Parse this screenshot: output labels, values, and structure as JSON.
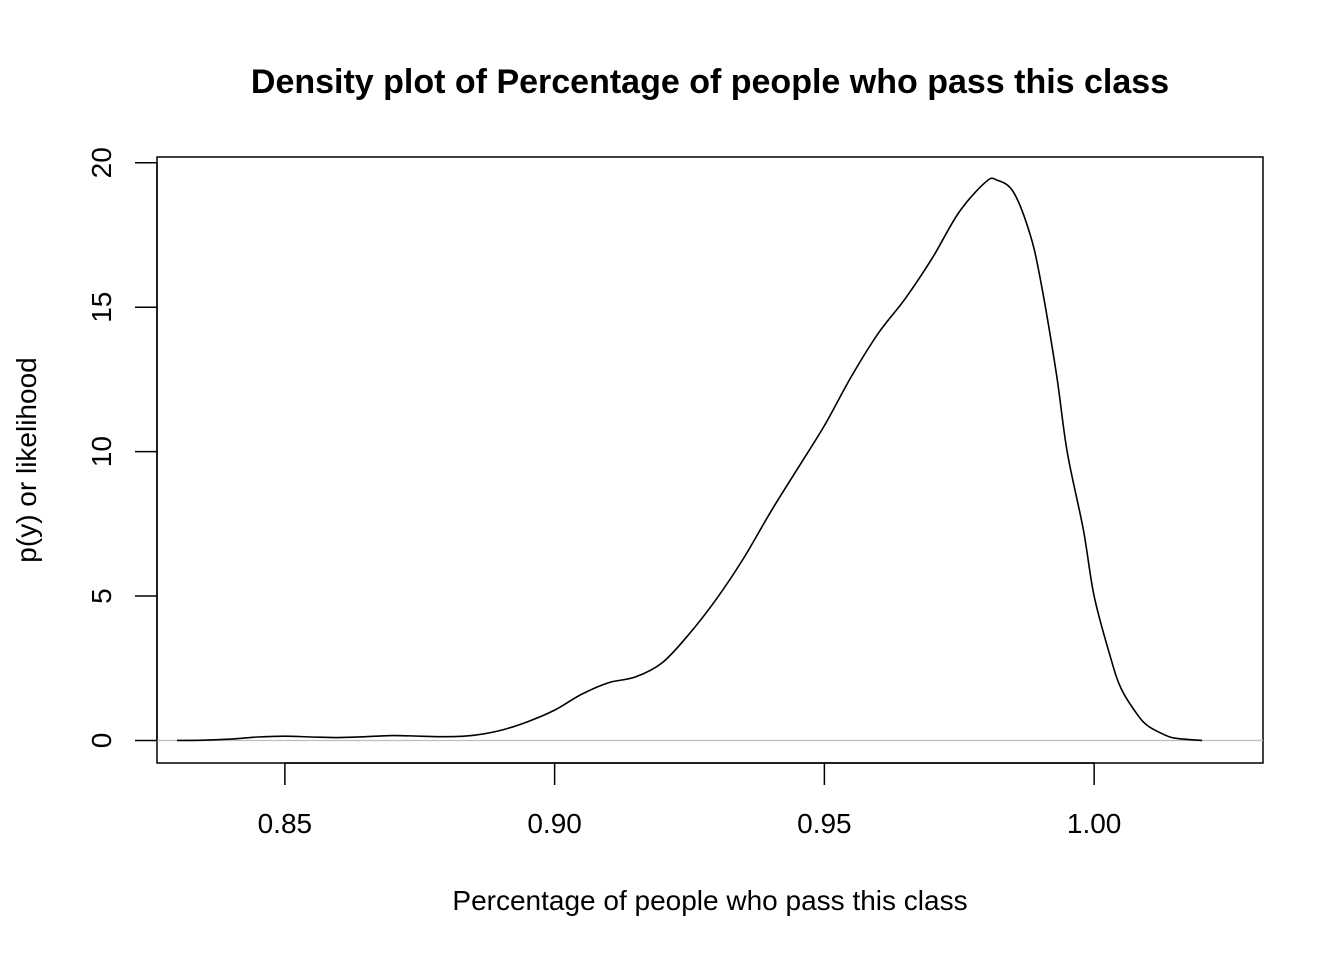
{
  "chart_data": {
    "type": "line",
    "title": "Density plot of Percentage of people who pass this class",
    "xlabel": "Percentage of people who pass this class",
    "ylabel": "p(y) or likelihood",
    "xlim": [
      0.8263,
      1.0313
    ],
    "ylim": [
      -0.78,
      20.2
    ],
    "x_ticks": [
      0.85,
      0.9,
      0.95,
      1.0
    ],
    "x_tick_labels": [
      "0.85",
      "0.90",
      "0.95",
      "1.00"
    ],
    "y_ticks": [
      0,
      5,
      10,
      15,
      20
    ],
    "y_tick_labels": [
      "0",
      "5",
      "10",
      "15",
      "20"
    ],
    "grid": false,
    "legend": "none",
    "baseline": {
      "y": 0,
      "color": "#bebebe"
    },
    "line_color": "#000000",
    "series": [
      {
        "x": [
          0.83,
          0.835,
          0.84,
          0.845,
          0.85,
          0.855,
          0.86,
          0.865,
          0.87,
          0.875,
          0.88,
          0.885,
          0.89,
          0.895,
          0.9,
          0.905,
          0.91,
          0.915,
          0.92,
          0.925,
          0.93,
          0.935,
          0.94,
          0.945,
          0.95,
          0.955,
          0.96,
          0.965,
          0.97,
          0.975,
          0.98,
          0.982,
          0.985,
          0.988,
          0.99,
          0.993,
          0.995,
          0.998,
          1.0,
          1.003,
          1.005,
          1.008,
          1.01,
          1.013,
          1.015,
          1.02
        ],
        "y": [
          0.0,
          0.01,
          0.05,
          0.12,
          0.15,
          0.12,
          0.1,
          0.13,
          0.17,
          0.15,
          0.13,
          0.18,
          0.35,
          0.65,
          1.05,
          1.6,
          2.0,
          2.2,
          2.7,
          3.7,
          4.9,
          6.3,
          7.9,
          9.4,
          10.9,
          12.6,
          14.1,
          15.3,
          16.7,
          18.3,
          19.35,
          19.4,
          19.0,
          17.6,
          16.0,
          12.7,
          10.0,
          7.3,
          5.0,
          2.9,
          1.8,
          0.9,
          0.5,
          0.2,
          0.08,
          0.0
        ]
      }
    ]
  }
}
